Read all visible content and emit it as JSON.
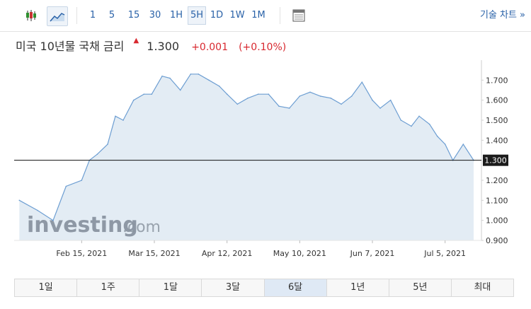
{
  "toolbar": {
    "intervals": [
      "1",
      "5",
      "15",
      "30",
      "1H",
      "5H",
      "1D",
      "1W",
      "1M"
    ],
    "active_interval": "5H",
    "tech_chart_label": "기술 차트 »"
  },
  "header": {
    "title": "미국 10년물 국채 금리",
    "price": "1.300",
    "change": "+0.001",
    "change_pct": "(+0.10%)"
  },
  "watermark": {
    "brand": "investing",
    "suffix": ".com"
  },
  "ranges": [
    "1일",
    "1주",
    "1달",
    "3달",
    "6달",
    "1년",
    "5년",
    "최대"
  ],
  "active_range": "6달",
  "colors": {
    "line": "#6d9ed2",
    "fill": "#e3ecf4",
    "up": "#d8282f",
    "link": "#2a62a8"
  },
  "chart_data": {
    "type": "area",
    "x": [
      "2021-01-22",
      "2021-01-29",
      "2021-02-04",
      "2021-02-09",
      "2021-02-15",
      "2021-02-18",
      "2021-02-21",
      "2021-02-25",
      "2021-02-28",
      "2021-03-03",
      "2021-03-07",
      "2021-03-11",
      "2021-03-14",
      "2021-03-18",
      "2021-03-21",
      "2021-03-25",
      "2021-03-29",
      "2021-04-01",
      "2021-04-05",
      "2021-04-09",
      "2021-04-12",
      "2021-04-16",
      "2021-04-20",
      "2021-04-24",
      "2021-04-28",
      "2021-05-02",
      "2021-05-06",
      "2021-05-10",
      "2021-05-14",
      "2021-05-18",
      "2021-05-22",
      "2021-05-26",
      "2021-05-30",
      "2021-06-03",
      "2021-06-07",
      "2021-06-10",
      "2021-06-14",
      "2021-06-18",
      "2021-06-22",
      "2021-06-25",
      "2021-06-29",
      "2021-07-02",
      "2021-07-05",
      "2021-07-08",
      "2021-07-12",
      "2021-07-16"
    ],
    "values": [
      1.1,
      1.05,
      1.0,
      1.17,
      1.2,
      1.3,
      1.33,
      1.38,
      1.52,
      1.5,
      1.6,
      1.63,
      1.63,
      1.72,
      1.71,
      1.65,
      1.73,
      1.73,
      1.7,
      1.67,
      1.63,
      1.58,
      1.61,
      1.63,
      1.63,
      1.57,
      1.56,
      1.62,
      1.64,
      1.62,
      1.61,
      1.58,
      1.62,
      1.69,
      1.6,
      1.56,
      1.6,
      1.5,
      1.47,
      1.52,
      1.48,
      1.42,
      1.38,
      1.3,
      1.38,
      1.3
    ],
    "x_tick_labels": [
      "Feb 15, 2021",
      "Mar 15, 2021",
      "Apr 12, 2021",
      "May 10, 2021",
      "Jun 7, 2021",
      "Jul 5, 2021"
    ],
    "y_tick_labels": [
      "1.700",
      "1.600",
      "1.500",
      "1.400",
      "1.300",
      "1.200",
      "1.100",
      "1.000",
      "0.900"
    ],
    "ylim": [
      0.9,
      1.8
    ],
    "current_value_label": "1.300",
    "current_value": 1.3
  }
}
